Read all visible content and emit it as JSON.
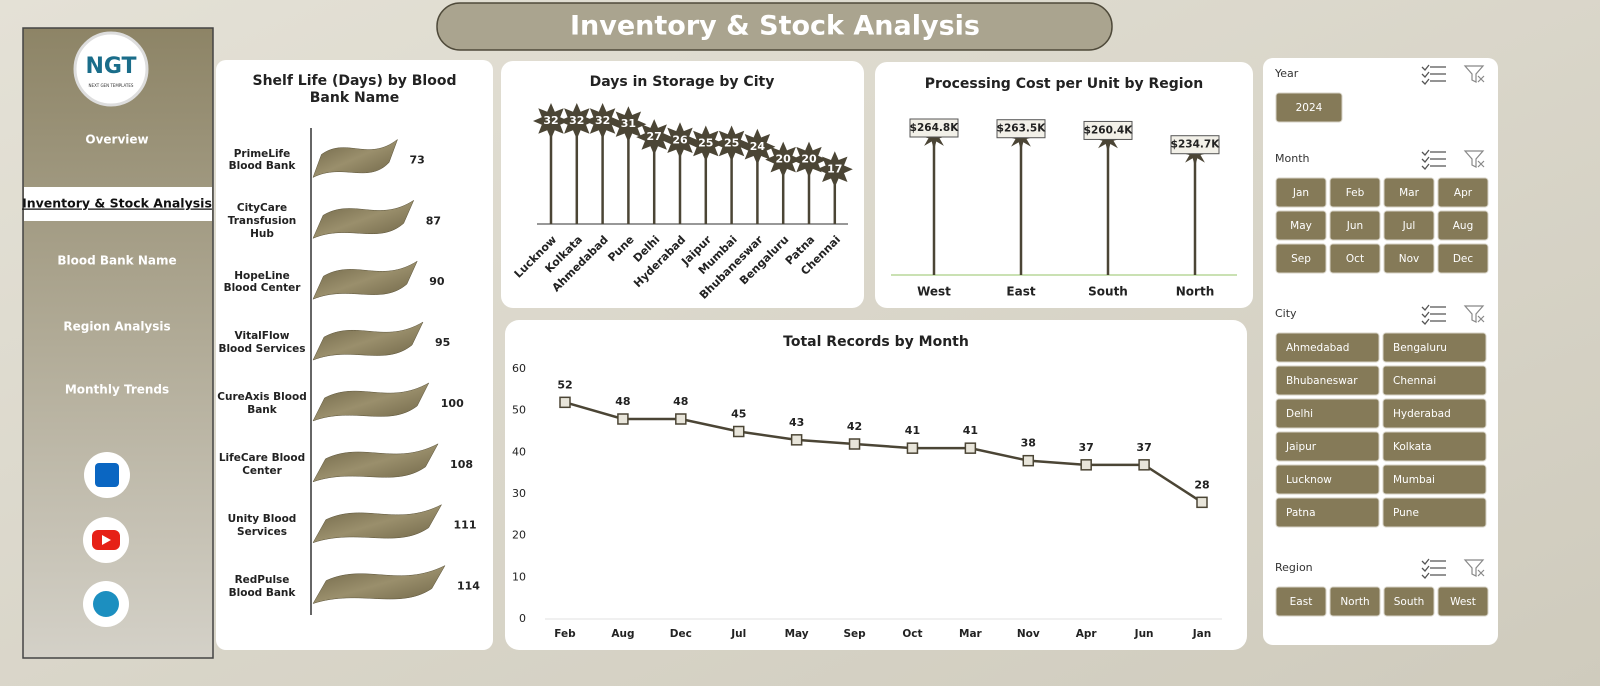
{
  "header": {
    "title": "Inventory & Stock Analysis"
  },
  "logo": {
    "text": "NGT",
    "tagline": "NEXT GEN TEMPLATES"
  },
  "nav": {
    "items": [
      {
        "label": "Overview"
      },
      {
        "label": "Inventory & Stock Analysis",
        "selected": true
      },
      {
        "label": "Blood Bank Name"
      },
      {
        "label": "Region Analysis"
      },
      {
        "label": "Monthly Trends"
      }
    ]
  },
  "slicers": [
    {
      "title": "Year",
      "items": [
        "2024"
      ]
    },
    {
      "title": "Month",
      "items": [
        "Jan",
        "Feb",
        "Mar",
        "Apr",
        "May",
        "Jun",
        "Jul",
        "Aug",
        "Sep",
        "Oct",
        "Nov",
        "Dec"
      ]
    },
    {
      "title": "City",
      "items": [
        "Ahmedabad",
        "Bengaluru",
        "Bhubaneswar",
        "Chennai",
        "Delhi",
        "Hyderabad",
        "Jaipur",
        "Kolkata",
        "Lucknow",
        "Mumbai",
        "Patna",
        "Pune"
      ]
    },
    {
      "title": "Region",
      "items": [
        "East",
        "North",
        "South",
        "West"
      ]
    }
  ],
  "chart_data": [
    {
      "type": "bar",
      "orientation": "horizontal",
      "title": "Shelf Life (Days) by Blood Bank Name",
      "categories": [
        "PrimeLife Blood Bank",
        "CityCare Transfusion Hub",
        "HopeLine Blood Center",
        "VitalFlow Blood Services",
        "CureAxis Blood Bank",
        "LifeCare Blood Center",
        "Unity Blood Services",
        "RedPulse Blood Bank"
      ],
      "values": [
        73,
        87,
        90,
        95,
        100,
        108,
        111,
        114
      ],
      "color": "#857a58"
    },
    {
      "type": "lollipop",
      "marker": "star",
      "title": "Days in Storage by City",
      "categories": [
        "Lucknow",
        "Kolkata",
        "Ahmedabad",
        "Pune",
        "Delhi",
        "Hyderabad",
        "Jaipur",
        "Mumbai",
        "Bhubaneswar",
        "Bengaluru",
        "Patna",
        "Chennai"
      ],
      "values": [
        32,
        32,
        32,
        31,
        27,
        26,
        25,
        25,
        24,
        20,
        20,
        17
      ],
      "color": "#4b4535"
    },
    {
      "type": "lollipop",
      "marker": "box",
      "title": "Processing Cost per Unit by Region",
      "categories": [
        "West",
        "East",
        "South",
        "North"
      ],
      "values": [
        264.8,
        263.5,
        260.4,
        234.7
      ],
      "value_labels": [
        "$264.8K",
        "$263.5K",
        "$260.4K",
        "$234.7K"
      ],
      "color": "#4b4535"
    },
    {
      "type": "line",
      "title": "Total Records by Month",
      "categories": [
        "Feb",
        "Aug",
        "Dec",
        "Jul",
        "May",
        "Sep",
        "Oct",
        "Mar",
        "Nov",
        "Apr",
        "Jun",
        "Jan"
      ],
      "values": [
        52,
        48,
        48,
        45,
        43,
        42,
        41,
        41,
        38,
        37,
        37,
        28
      ],
      "color": "#4b4535",
      "ylim": [
        0,
        60
      ],
      "yticks": [
        0,
        10,
        20,
        30,
        40,
        50,
        60
      ],
      "grid": false
    }
  ]
}
